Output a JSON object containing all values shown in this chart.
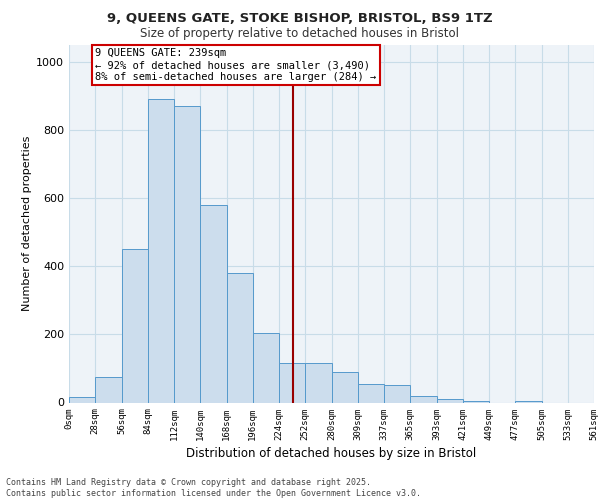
{
  "title_line1": "9, QUEENS GATE, STOKE BISHOP, BRISTOL, BS9 1TZ",
  "title_line2": "Size of property relative to detached houses in Bristol",
  "xlabel": "Distribution of detached houses by size in Bristol",
  "ylabel": "Number of detached properties",
  "bar_values": [
    15,
    75,
    450,
    890,
    870,
    580,
    380,
    205,
    115,
    115,
    90,
    55,
    50,
    20,
    10,
    5,
    0,
    5,
    0,
    0
  ],
  "bar_color": "#ccdded",
  "bar_edge_color": "#5599cc",
  "x_labels": [
    "0sqm",
    "28sqm",
    "56sqm",
    "84sqm",
    "112sqm",
    "140sqm",
    "168sqm",
    "196sqm",
    "224sqm",
    "252sqm",
    "280sqm",
    "309sqm",
    "337sqm",
    "365sqm",
    "393sqm",
    "421sqm",
    "449sqm",
    "477sqm",
    "505sqm",
    "533sqm",
    "561sqm"
  ],
  "bin_width": 28,
  "property_size": 239,
  "vline_color": "#990000",
  "annotation_text": "9 QUEENS GATE: 239sqm\n← 92% of detached houses are smaller (3,490)\n8% of semi-detached houses are larger (284) →",
  "annotation_box_color": "#cc0000",
  "ylim": [
    0,
    1050
  ],
  "yticks": [
    0,
    200,
    400,
    600,
    800,
    1000
  ],
  "grid_color": "#c8dce8",
  "bg_color": "#eef3f8",
  "footer_line1": "Contains HM Land Registry data © Crown copyright and database right 2025.",
  "footer_line2": "Contains public sector information licensed under the Open Government Licence v3.0."
}
